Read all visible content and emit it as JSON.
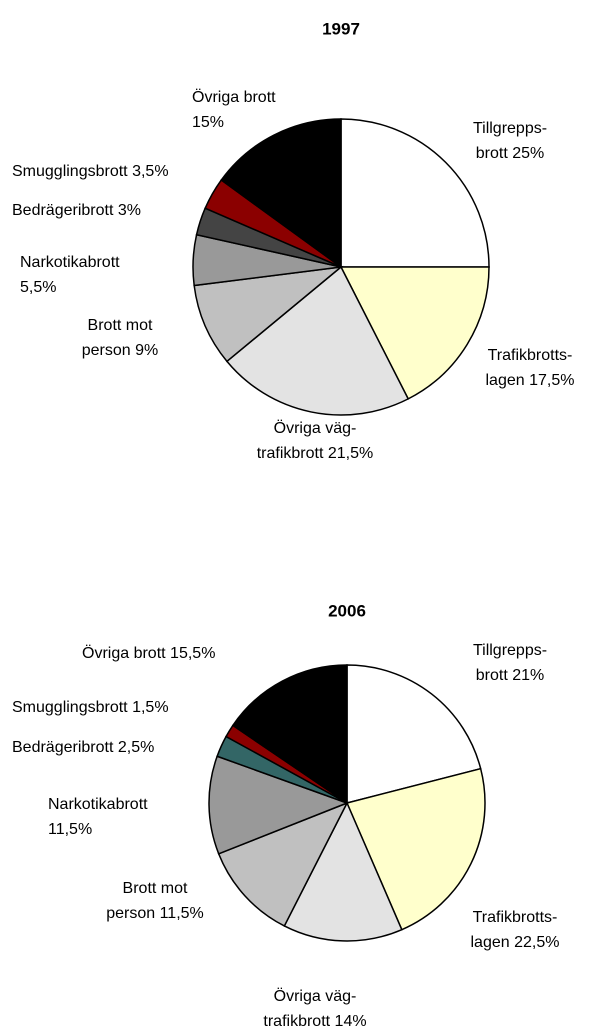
{
  "chart_data": [
    {
      "type": "pie",
      "title": "1997",
      "categories": [
        "Tillgrepps-\nbrott",
        "Trafikbrotts-\nlagen",
        "Övriga väg-\ntrafikbrott",
        "Brott mot\nperson",
        "Narkotikabrott",
        "Bedrägeribrott",
        "Smugglingsbrott",
        "Övriga brott"
      ],
      "values": [
        25,
        17.5,
        21.5,
        9,
        5.5,
        3,
        3.5,
        15
      ],
      "value_labels": [
        "25%",
        "17,5%",
        "21,5%",
        "9%",
        "5,5%",
        "3%",
        "3,5%",
        "15%"
      ],
      "colors": [
        "#ffffff",
        "#ffffcc",
        "#e3e3e3",
        "#c0c0c0",
        "#999999",
        "#444444",
        "#8b0000",
        "#000000"
      ]
    },
    {
      "type": "pie",
      "title": "2006",
      "categories": [
        "Tillgrepps-\nbrott",
        "Trafikbrotts-\nlagen",
        "Övriga väg-\ntrafikbrott",
        "Brott mot\nperson",
        "Narkotikabrott",
        "Bedrägeribrott",
        "Smugglingsbrott",
        "Övriga brott"
      ],
      "values": [
        21,
        22.5,
        14,
        11.5,
        11.5,
        2.5,
        1.5,
        15.5
      ],
      "value_labels": [
        "21%",
        "22,5%",
        "14%",
        "11,5%",
        "11,5%",
        "2,5%",
        "1,5%",
        "15,5%"
      ],
      "colors": [
        "#ffffff",
        "#ffffcc",
        "#e3e3e3",
        "#c0c0c0",
        "#999999",
        "#336666",
        "#8b0000",
        "#000000"
      ]
    }
  ]
}
